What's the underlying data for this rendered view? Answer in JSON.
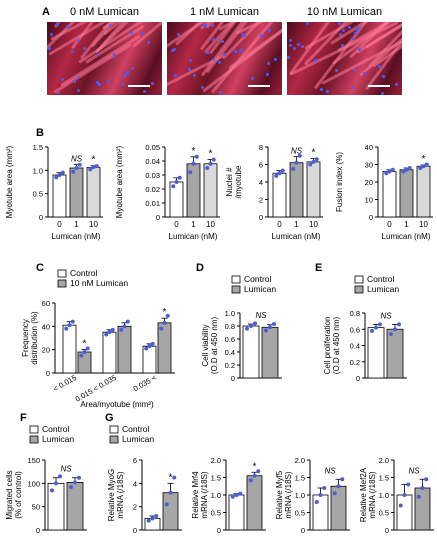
{
  "panels": {
    "A": "A",
    "B": "B",
    "C": "C",
    "D": "D",
    "E": "E",
    "F": "F",
    "G": "G"
  },
  "micrographs": [
    {
      "label": "0 nM Lumican"
    },
    {
      "label": "1 nM Lumican"
    },
    {
      "label": "10 nM Lumican"
    }
  ],
  "colors": {
    "control": "#ffffff",
    "treated": "#a6a6a6",
    "light": "#d9d9d9",
    "dots": "#4a5fd6",
    "star": "#000000"
  },
  "chart_data": [
    {
      "id": "B1",
      "type": "bar",
      "categories": [
        "0",
        "1",
        "10"
      ],
      "values": [
        0.9,
        1.05,
        1.06
      ],
      "errors": [
        0.05,
        0.08,
        0.04
      ],
      "points": [
        [
          0.85,
          0.9,
          0.95
        ],
        [
          0.97,
          1.05,
          1.12
        ],
        [
          1.02,
          1.07,
          1.09
        ]
      ],
      "ylabel": "Myotube area (mm²)",
      "xlabel": "Lumican (nM)",
      "ylim": [
        0,
        1.5
      ],
      "yticks": [
        "0",
        "0.5",
        "1.0",
        "1.5"
      ],
      "annotations": [
        {
          "cat": 1,
          "text": "NS"
        },
        {
          "cat": 2,
          "text": "*"
        }
      ],
      "fills": [
        "control",
        "treated",
        "light"
      ]
    },
    {
      "id": "B2",
      "type": "bar",
      "categories": [
        "0",
        "1",
        "10"
      ],
      "values": [
        0.025,
        0.038,
        0.038
      ],
      "errors": [
        0.003,
        0.005,
        0.003
      ],
      "points": [
        [
          0.022,
          0.025,
          0.028
        ],
        [
          0.032,
          0.038,
          0.043
        ],
        [
          0.035,
          0.038,
          0.041
        ]
      ],
      "ylabel": "Myotube area (mm²)",
      "xlabel": "Lumican (nM)",
      "ylim": [
        0,
        0.05
      ],
      "yticks": [
        "0",
        "0.01",
        "0.02",
        "0.03",
        "0.04",
        "0.05"
      ],
      "annotations": [
        {
          "cat": 1,
          "text": "*"
        },
        {
          "cat": 2,
          "text": "*"
        }
      ],
      "fills": [
        "control",
        "treated",
        "light"
      ]
    },
    {
      "id": "B3",
      "type": "bar",
      "categories": [
        "0",
        "1",
        "10"
      ],
      "values": [
        5,
        6.2,
        6.3
      ],
      "errors": [
        0.3,
        0.7,
        0.4
      ],
      "points": [
        [
          4.7,
          5,
          5.3
        ],
        [
          5.5,
          6.2,
          7
        ],
        [
          6,
          6.3,
          6.6
        ]
      ],
      "ylabel": "Nuclei # /myotube",
      "xlabel": "Lumican (nM)",
      "ylim": [
        0,
        8
      ],
      "yticks": [
        "0",
        "2",
        "4",
        "6",
        "8"
      ],
      "annotations": [
        {
          "cat": 1,
          "text": "NS"
        },
        {
          "cat": 2,
          "text": "*"
        }
      ],
      "fills": [
        "control",
        "treated",
        "light"
      ]
    },
    {
      "id": "B4",
      "type": "bar",
      "categories": [
        "0",
        "1",
        "10"
      ],
      "values": [
        26,
        27,
        29
      ],
      "errors": [
        1,
        1,
        0.8
      ],
      "points": [
        [
          25,
          26,
          27
        ],
        [
          26,
          27,
          28
        ],
        [
          28,
          29,
          30
        ]
      ],
      "ylabel": "Fusion index (%)",
      "xlabel": "Lumican (nM)",
      "ylim": [
        0,
        40
      ],
      "yticks": [
        "0",
        "10",
        "20",
        "30",
        "40"
      ],
      "annotations": [
        {
          "cat": 2,
          "text": "*"
        }
      ],
      "fills": [
        "control",
        "treated",
        "light"
      ]
    },
    {
      "id": "C",
      "type": "bar",
      "categories": [
        "< 0.015",
        "0.015 < 0.035",
        "0.035 <"
      ],
      "series": [
        {
          "name": "Control",
          "values": [
            41,
            35,
            23
          ],
          "errors": [
            3,
            2,
            2
          ],
          "points": [
            [
              38,
              41,
              44
            ],
            [
              33,
              35,
              37
            ],
            [
              21,
              23,
              25
            ]
          ]
        },
        {
          "name": "10 nM Lumican",
          "values": [
            18,
            40,
            43
          ],
          "errors": [
            2,
            3,
            4
          ],
          "points": [
            [
              15,
              18,
              21
            ],
            [
              37,
              40,
              44
            ],
            [
              38,
              43,
              49
            ]
          ]
        }
      ],
      "ylabel": "Frequency distribution (%)",
      "xlabel": "Area/myotube (mm²)",
      "ylim": [
        0,
        60
      ],
      "yticks": [
        "0",
        "20",
        "40",
        "60"
      ],
      "annotations": [
        {
          "cat": 0,
          "series": 1,
          "text": "*"
        },
        {
          "cat": 2,
          "series": 1,
          "text": "*"
        }
      ]
    },
    {
      "id": "D",
      "type": "bar",
      "categories": [
        "Control",
        "Lumican"
      ],
      "values": [
        0.8,
        0.78
      ],
      "errors": [
        0.03,
        0.04
      ],
      "points": [
        [
          0.76,
          0.8,
          0.84
        ],
        [
          0.73,
          0.78,
          0.83
        ]
      ],
      "ylabel": "Cell viability (O.D at 450 nm)",
      "ylim": [
        0,
        1.0
      ],
      "yticks": [
        "0",
        "0.2",
        "0.4",
        "0.6",
        "0.8",
        "1.0"
      ],
      "annotations": [
        {
          "text": "NS"
        }
      ],
      "legend": [
        "Control",
        "Lumican"
      ]
    },
    {
      "id": "E",
      "type": "bar",
      "categories": [
        "Control",
        "Lumican"
      ],
      "values": [
        0.62,
        0.6
      ],
      "errors": [
        0.04,
        0.06
      ],
      "points": [
        [
          0.58,
          0.62,
          0.66
        ],
        [
          0.54,
          0.6,
          0.66
        ]
      ],
      "ylabel": "Cell proliferation (O.D at 450 nm)",
      "ylim": [
        0,
        0.8
      ],
      "yticks": [
        "0",
        "0.2",
        "0.4",
        "0.6",
        "0.8"
      ],
      "annotations": [
        {
          "text": "NS"
        }
      ],
      "legend": [
        "Control",
        "Lumican"
      ]
    },
    {
      "id": "F",
      "type": "bar",
      "categories": [
        "Control",
        "Lumican"
      ],
      "values": [
        100,
        102
      ],
      "errors": [
        12,
        10
      ],
      "points": [
        [
          85,
          100,
          115
        ],
        [
          92,
          102,
          112
        ]
      ],
      "ylabel": "Migrated cells (% of control)",
      "ylim": [
        0,
        150
      ],
      "yticks": [
        "0",
        "50",
        "100",
        "150"
      ],
      "annotations": [
        {
          "text": "NS"
        }
      ],
      "legend": [
        "Control",
        "Lumican"
      ]
    },
    {
      "id": "G1",
      "type": "bar",
      "categories": [
        "Control",
        "Lumican"
      ],
      "values": [
        1,
        3.2
      ],
      "errors": [
        0.2,
        0.8
      ],
      "points": [
        [
          0.8,
          1,
          1.2
        ],
        [
          2.2,
          3.2,
          4.5
        ]
      ],
      "ylabel": "Relative MyoG mRNA (/18S)",
      "ylim": [
        0,
        6
      ],
      "yticks": [
        "0",
        "2",
        "4",
        "6"
      ],
      "annotations": [
        {
          "text": "*"
        }
      ],
      "legend": [
        "Control",
        "Lumican"
      ]
    },
    {
      "id": "G2",
      "type": "bar",
      "categories": [
        "Control",
        "Lumican"
      ],
      "values": [
        1,
        1.55
      ],
      "errors": [
        0.04,
        0.1
      ],
      "points": [
        [
          0.95,
          1,
          1.04
        ],
        [
          1.42,
          1.55,
          1.68
        ]
      ],
      "ylabel": "Relative Mrf4 mRNA (/18S)",
      "ylim": [
        0,
        2.0
      ],
      "yticks": [
        "0",
        "0.5",
        "1.0",
        "1.5",
        "2.0"
      ],
      "annotations": [
        {
          "text": "*"
        }
      ]
    },
    {
      "id": "G3",
      "type": "bar",
      "categories": [
        "Control",
        "Lumican"
      ],
      "values": [
        1,
        1.25
      ],
      "errors": [
        0.2,
        0.2
      ],
      "points": [
        [
          0.8,
          1,
          1.2
        ],
        [
          1.05,
          1.25,
          1.45
        ]
      ],
      "ylabel": "Relative Myf5 mRNA (/18S)",
      "ylim": [
        0,
        2.0
      ],
      "yticks": [
        "0",
        "0.5",
        "1.0",
        "1.5",
        "2.0"
      ],
      "annotations": [
        {
          "text": "NS"
        }
      ]
    },
    {
      "id": "G4",
      "type": "bar",
      "categories": [
        "Control",
        "Lumican"
      ],
      "values": [
        1,
        1.2
      ],
      "errors": [
        0.3,
        0.25
      ],
      "points": [
        [
          0.7,
          1,
          1.3
        ],
        [
          0.95,
          1.2,
          1.45
        ]
      ],
      "ylabel": "Relative Mef2A mRNA (/18S)",
      "ylim": [
        0,
        2.0
      ],
      "yticks": [
        "0",
        "0.5",
        "1.0",
        "1.5",
        "2.0"
      ],
      "annotations": [
        {
          "text": "NS"
        }
      ]
    }
  ]
}
